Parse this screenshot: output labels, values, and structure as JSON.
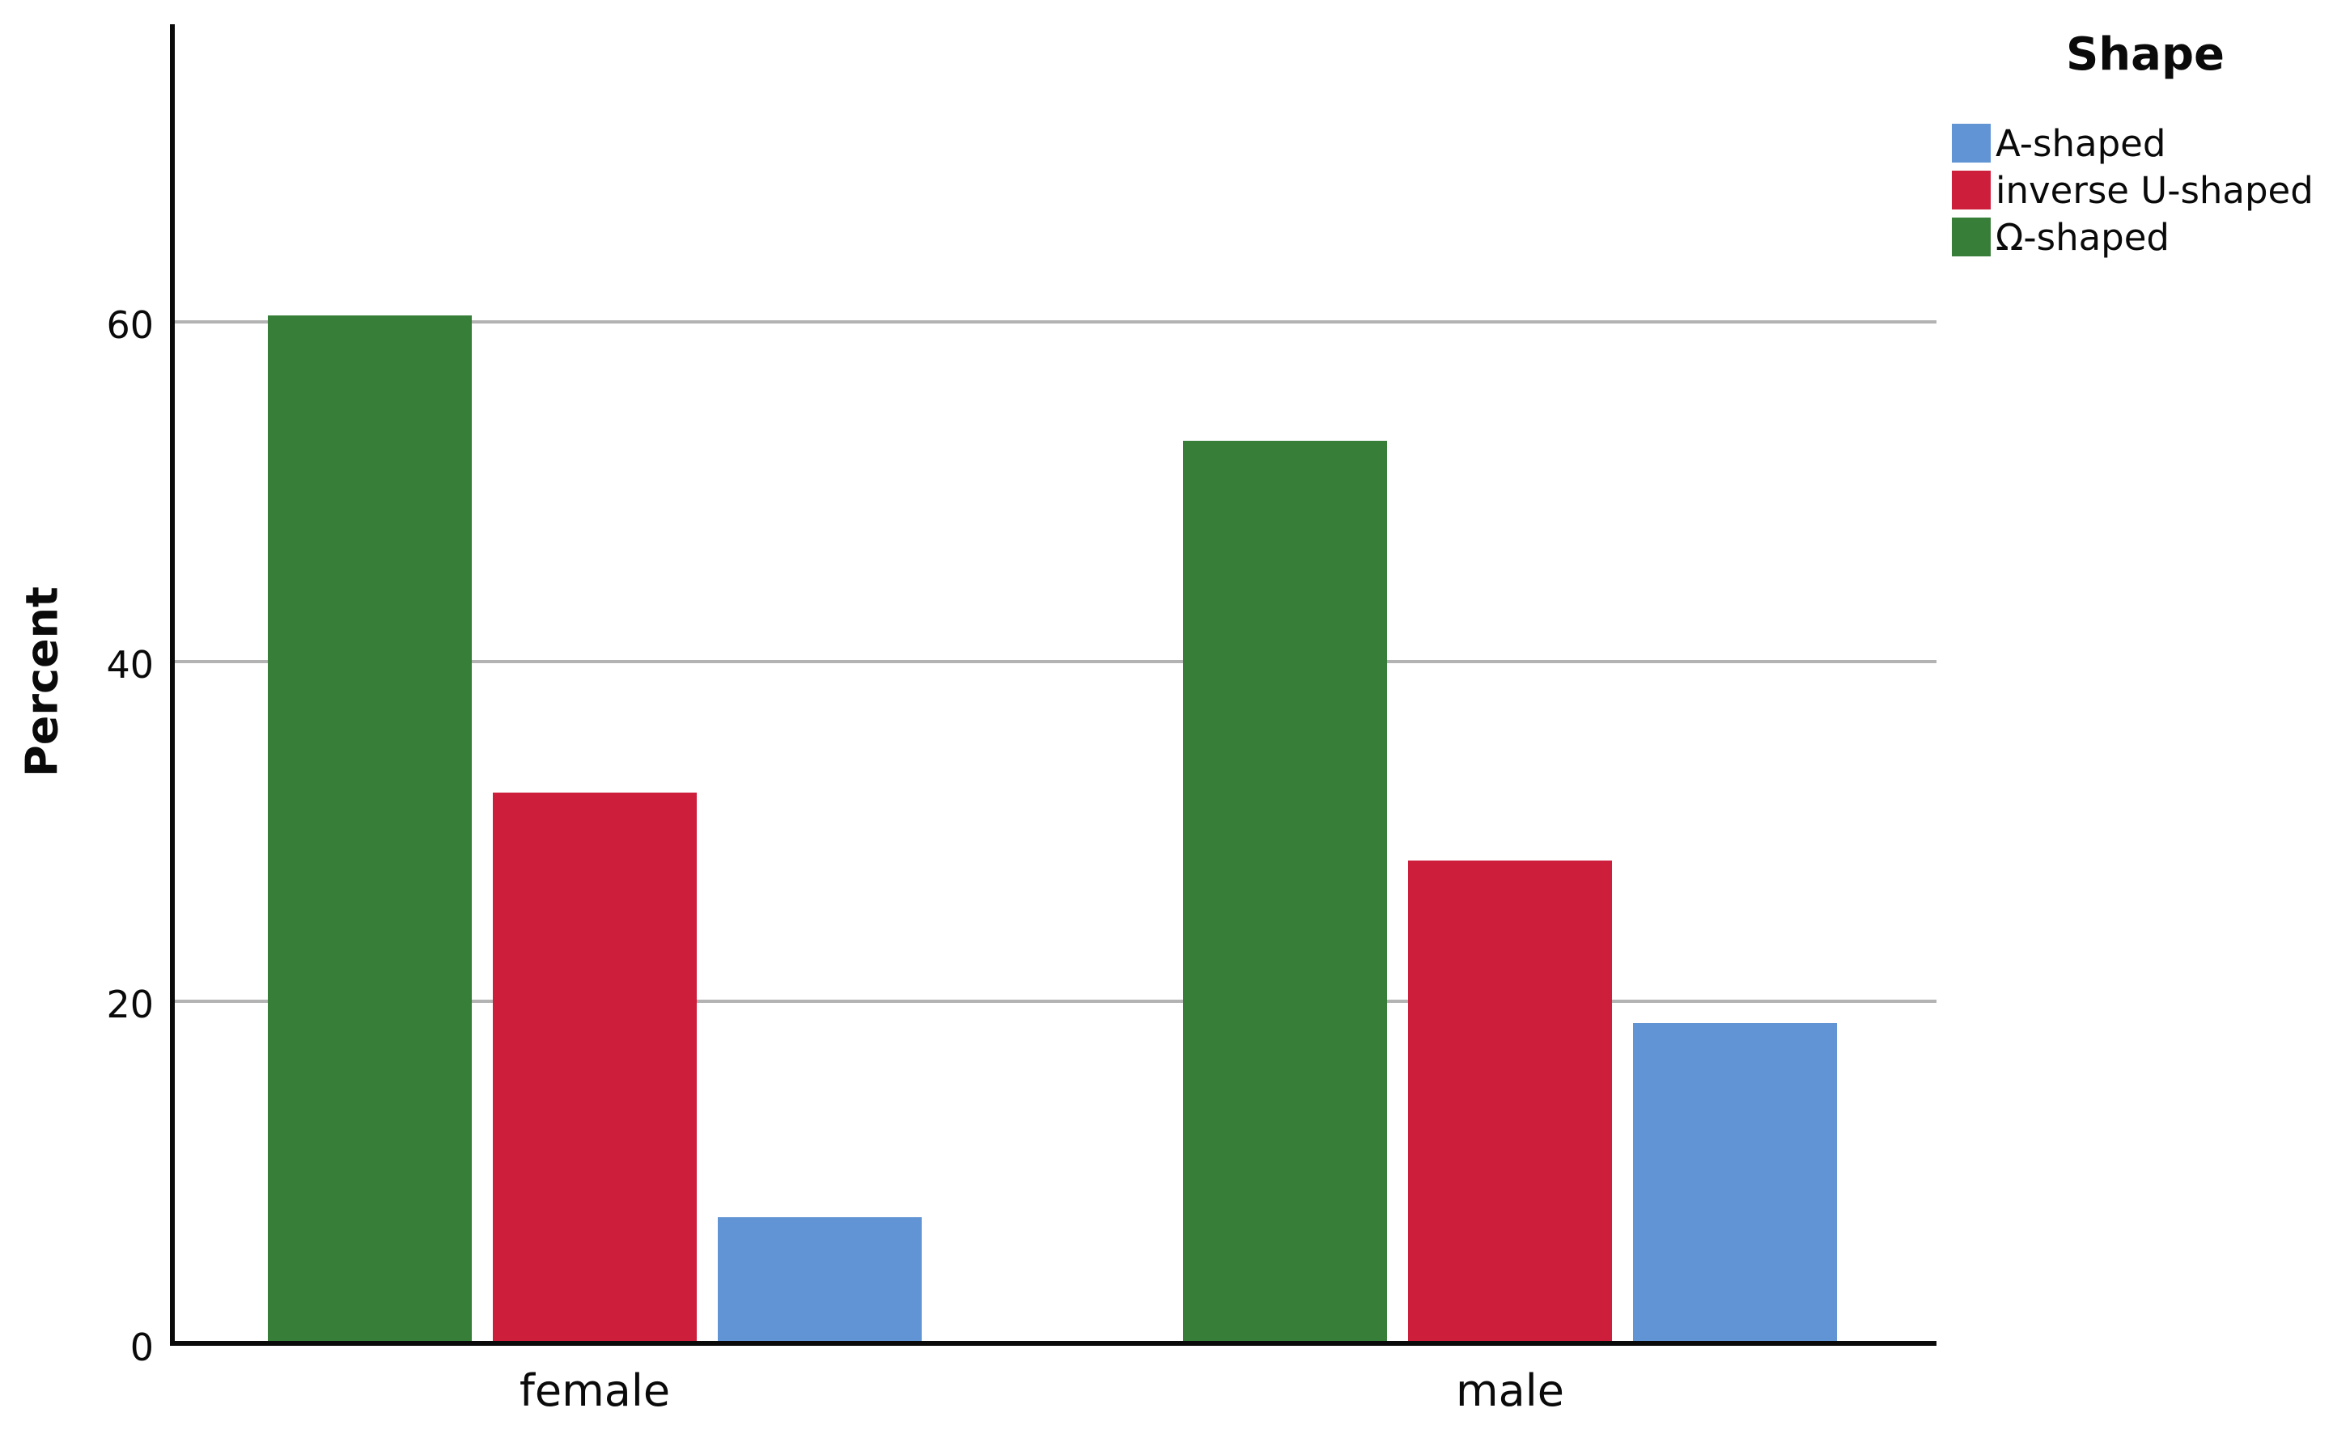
{
  "chart_data": {
    "type": "bar",
    "variant": "grouped",
    "title": "",
    "xlabel": "",
    "ylabel": "Percent",
    "categories": [
      "female",
      "male"
    ],
    "series": [
      {
        "name": "A-shaped",
        "color": "#6194D4",
        "values": [
          7.3,
          18.7
        ]
      },
      {
        "name": "inverse U-shaped",
        "color": "#CD1E3C",
        "values": [
          32.3,
          28.3
        ]
      },
      {
        "name": "Ω-shaped",
        "color": "#377E39",
        "values": [
          60.4,
          53.0
        ]
      }
    ],
    "bar_order_within_group": [
      "Ω-shaped",
      "inverse U-shaped",
      "A-shaped"
    ],
    "yticks": [
      0,
      20,
      40,
      60
    ],
    "ylim": [
      0,
      78
    ],
    "grid": "horizontal",
    "gridline_color": "#B3B3B3",
    "axis_color": "#0A0A0A",
    "background_color": "#FFFFFF",
    "legend": {
      "title": "Shape",
      "position": "top-right"
    }
  }
}
